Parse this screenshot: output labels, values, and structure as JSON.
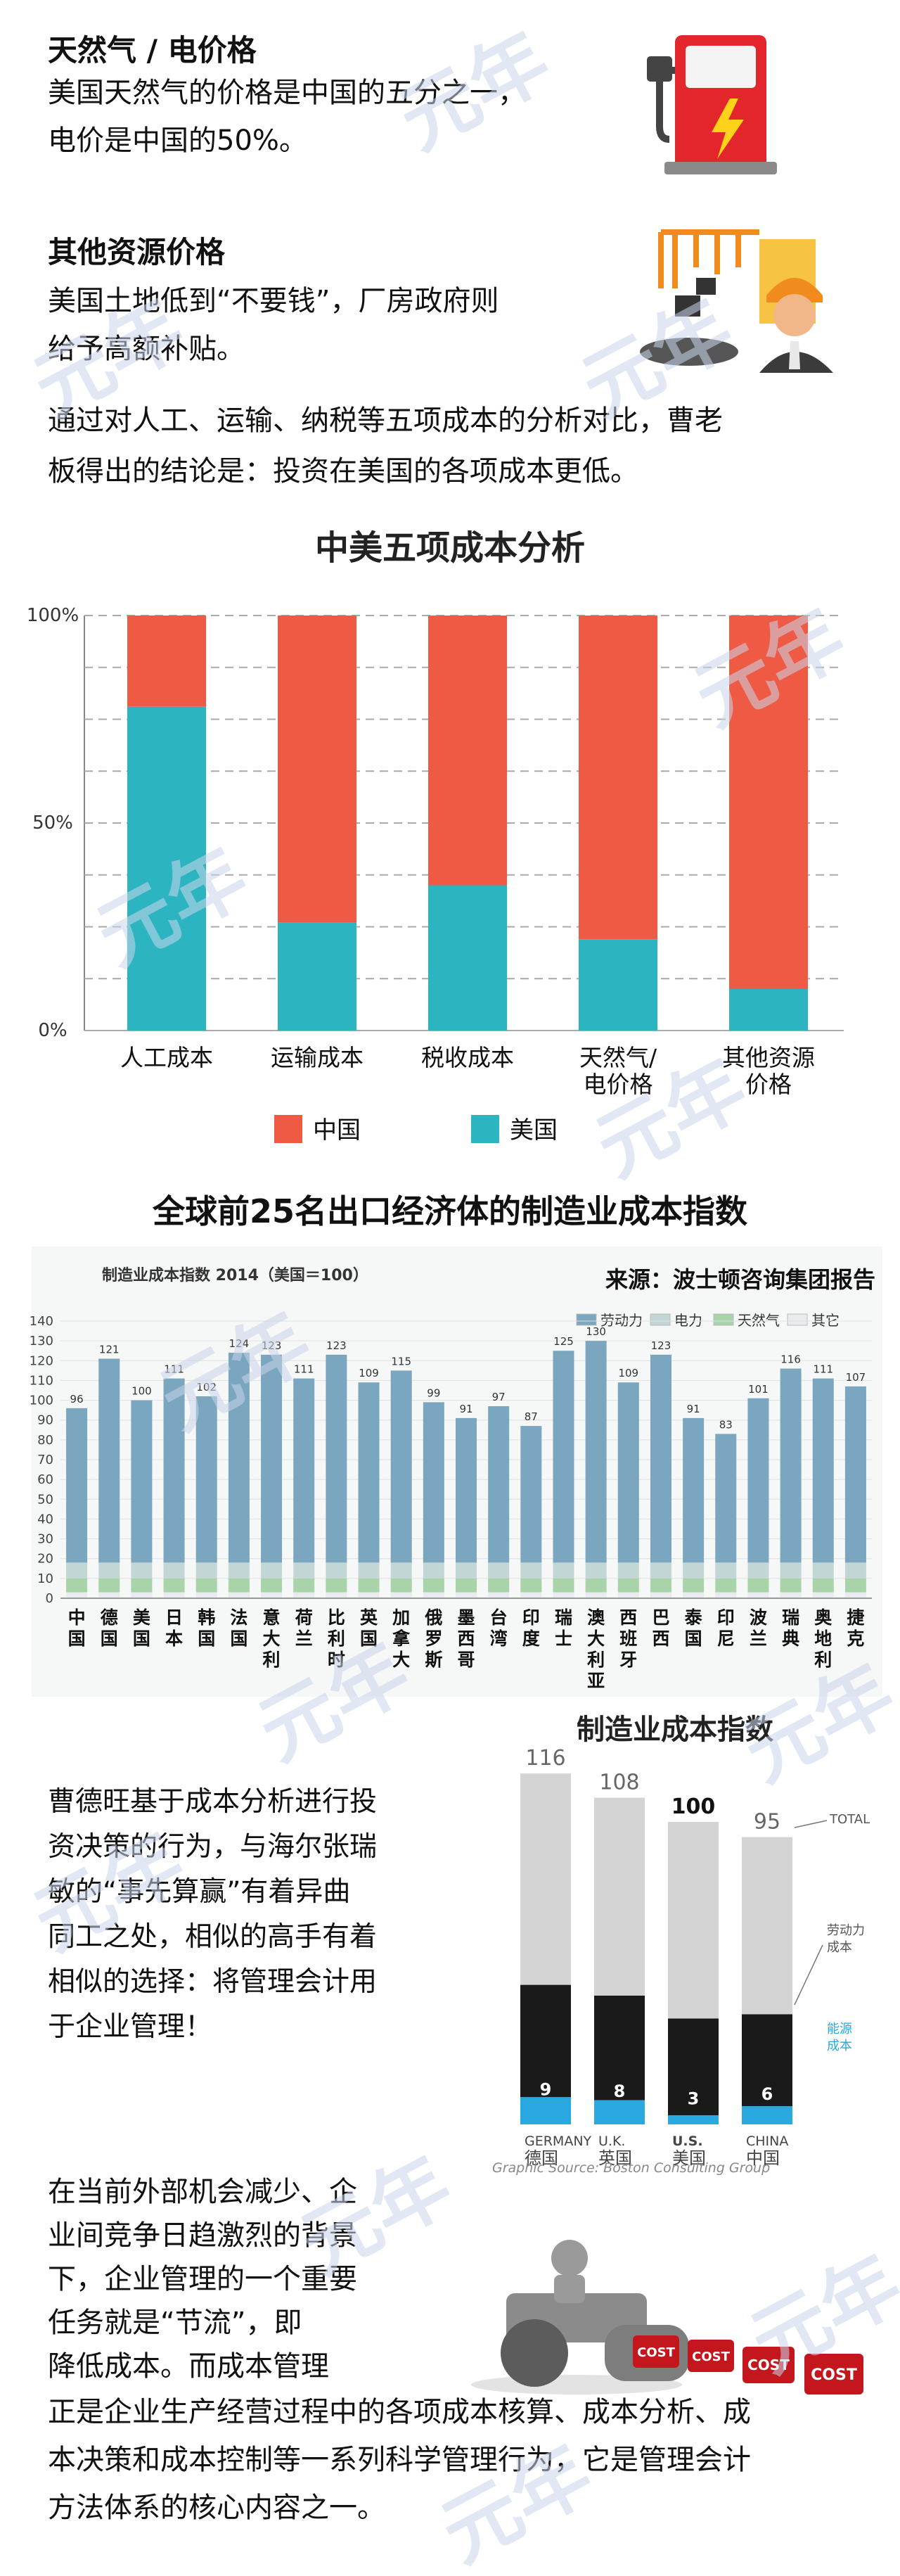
{
  "sections": {
    "gas": {
      "title": "天然气 / 电价格",
      "lines": [
        "美国天然气的价格是中国的五分之一，",
        "电价是中国的50%。"
      ]
    },
    "other": {
      "title": "其他资源价格",
      "lines": [
        "美国土地低到“不要钱”，厂房政府则",
        "给予高额补贴。"
      ]
    },
    "conclusion": {
      "lines": [
        "通过对人工、运输、纳税等五项成本的分析对比，曹老",
        "板得出的结论是：投资在美国的各项成本更低。"
      ]
    }
  },
  "chart_data": [
    {
      "type": "bar",
      "stacked": true,
      "title": "中美五项成本分析",
      "categories": [
        [
          "人工成本"
        ],
        [
          "运输成本"
        ],
        [
          "税收成本"
        ],
        [
          "天然气/",
          "电价格"
        ],
        [
          "其他资源",
          "价格"
        ]
      ],
      "series": [
        {
          "name": "美国",
          "values": [
            78,
            26,
            35,
            22,
            10
          ]
        },
        {
          "name": "中国",
          "values": [
            22,
            74,
            65,
            78,
            90
          ]
        }
      ],
      "y_ticks": [
        "100%",
        "50%",
        "0%"
      ],
      "ylim": [
        0,
        100
      ],
      "legend": [
        "中国",
        "美国"
      ],
      "legend_position": "bottom",
      "colors": {
        "中国": "#ef5a45",
        "美国": "#2cb5c0"
      }
    },
    {
      "type": "bar",
      "stacked": true,
      "title": "全球前25名出口经济体的制造业成本指数",
      "subtitle": "制造业成本指数 2014（美国＝100）",
      "source": "来源：波士顿咨询集团报告",
      "legend": [
        "劳动力",
        "电力",
        "天然气",
        "其它"
      ],
      "ylim": [
        0,
        140
      ],
      "y_ticks": [
        0,
        10,
        20,
        30,
        40,
        50,
        60,
        70,
        80,
        90,
        100,
        110,
        120,
        130,
        140
      ],
      "categories": [
        "中国",
        "德国",
        "美国",
        "日本",
        "韩国",
        "法国",
        "意大利",
        "荷兰",
        "比利时",
        "英国",
        "加拿大",
        "俄罗斯",
        "墨西哥",
        "台湾",
        "印度",
        "瑞士",
        "澳大利亚",
        "西班牙",
        "巴西",
        "泰国",
        "印尼",
        "波兰",
        "瑞典",
        "奥地利",
        "捷克"
      ],
      "values": [
        96,
        121,
        100,
        111,
        102,
        124,
        123,
        111,
        123,
        109,
        115,
        99,
        91,
        97,
        87,
        125,
        130,
        109,
        123,
        91,
        83,
        101,
        116,
        111,
        107
      ],
      "colors": {
        "劳动力": "#7aa6bf",
        "电力": "#c3d6d6",
        "天然气": "#a9d3a8",
        "其它": "#e9ecef"
      }
    },
    {
      "type": "bar",
      "stacked": true,
      "title": "制造业成本指数",
      "categories": [
        [
          "GERMANY",
          "德国"
        ],
        [
          "U.K.",
          "英国"
        ],
        [
          "U.S.",
          "美国"
        ],
        [
          "CHINA",
          "中国"
        ]
      ],
      "totals": [
        116,
        108,
        100,
        95
      ],
      "energy": [
        9,
        8,
        3,
        6
      ],
      "labels": {
        "total": "TOTAL",
        "labor": [
          "劳动力",
          "成本"
        ],
        "energy": [
          "能源",
          "成本"
        ]
      },
      "source": "Graphic Source: Boston Consulting Group",
      "colors": {
        "total": "#d4d4d4",
        "labor": "#1a1a1a",
        "energy": "#29a9e0"
      }
    }
  ],
  "chart3_text": [
    "曹德旺基于成本分析进行投",
    "资决策的行为，与海尔张瑞",
    "敏的“事先算赢”有着异曲",
    "同工之处，相似的高手有着",
    "相似的选择：将管理会计用",
    "于企业管理！"
  ],
  "closing": {
    "lines_left": [
      "在当前外部机会减少、企",
      "业间竞争日趋激烈的背景",
      "下，企业管理的一个重要",
      "任务就是“节流”，即",
      "降低成本。而成本管理"
    ],
    "lines_full": [
      "正是企业生产经营过程中的各项成本核算、成本分析、成",
      "本决策和成本控制等一系列科学管理行为，它是管理会计",
      "方法体系的核心内容之一。"
    ],
    "cost_label": "COST"
  }
}
